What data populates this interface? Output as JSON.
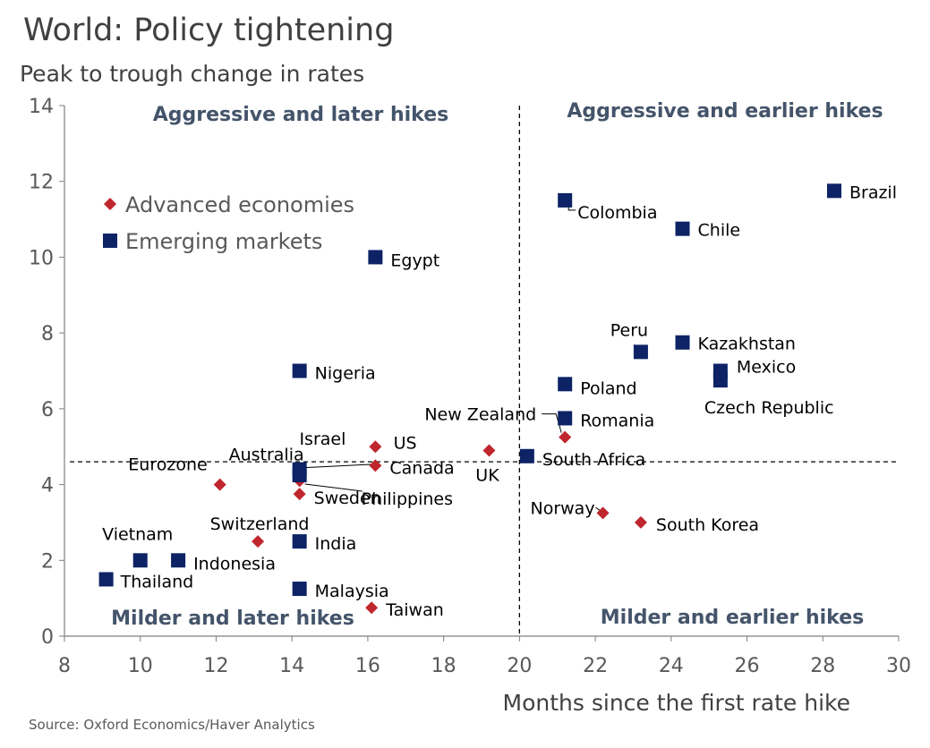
{
  "title": "World: Policy tightening",
  "subtitle": "Peak to trough change in rates",
  "source": "Source: Oxford Economics/Haver Analytics",
  "chart_data": {
    "type": "scatter",
    "xlabel": "Months since the first rate hike",
    "ylabel": "Peak to trough change in rates",
    "xlim": [
      8,
      30
    ],
    "ylim": [
      0,
      14
    ],
    "xticks": [
      "8",
      "10",
      "12",
      "14",
      "16",
      "18",
      "20",
      "22",
      "24",
      "26",
      "28",
      "30"
    ],
    "yticks": [
      "0",
      "2",
      "4",
      "6",
      "8",
      "10",
      "12",
      "14"
    ],
    "reference_lines": {
      "x": 20,
      "y": 4.6
    },
    "grid": false,
    "legend_placement": "top-left",
    "quadrant_labels": {
      "top_left": "Aggressive and later hikes",
      "top_right": "Aggressive and earlier hikes",
      "bottom_left": "Milder and later hikes",
      "bottom_right": "Milder and earlier hikes"
    },
    "series": [
      {
        "name": "Advanced economies",
        "marker": "diamond",
        "color": "#c0262d",
        "points": [
          {
            "label": "Israel",
            "x": 16.2,
            "y": 5.0
          },
          {
            "label": "Canada",
            "x": 16.2,
            "y": 4.5
          },
          {
            "label": "Australia",
            "x": 14.2,
            "y": 4.1
          },
          {
            "label": "Sweden",
            "x": 14.2,
            "y": 3.75
          },
          {
            "label": "Eurozone",
            "x": 12.1,
            "y": 4.0
          },
          {
            "label": "UK",
            "x": 19.2,
            "y": 4.9
          },
          {
            "label": "New Zealand",
            "x": 21.2,
            "y": 5.25
          },
          {
            "label": "Switzerland",
            "x": 13.1,
            "y": 2.5
          },
          {
            "label": "Norway",
            "x": 22.2,
            "y": 3.25
          },
          {
            "label": "South Korea",
            "x": 23.2,
            "y": 3.0
          },
          {
            "label": "Taiwan",
            "x": 16.1,
            "y": 0.75
          }
        ]
      },
      {
        "name": "Emerging markets",
        "marker": "square",
        "color": "#0d2366",
        "points": [
          {
            "label": "Colombia",
            "x": 21.2,
            "y": 11.5
          },
          {
            "label": "Brazil",
            "x": 28.3,
            "y": 11.75
          },
          {
            "label": "Chile",
            "x": 24.3,
            "y": 10.75
          },
          {
            "label": "Egypt",
            "x": 16.2,
            "y": 10.0
          },
          {
            "label": "Peru",
            "x": 23.2,
            "y": 7.5
          },
          {
            "label": "Kazakhstan",
            "x": 24.3,
            "y": 7.75
          },
          {
            "label": "Mexico",
            "x": 25.3,
            "y": 7.0
          },
          {
            "label": "Czech Republic",
            "x": 25.3,
            "y": 6.75
          },
          {
            "label": "Nigeria",
            "x": 14.2,
            "y": 7.0
          },
          {
            "label": "Poland",
            "x": 21.2,
            "y": 6.65
          },
          {
            "label": "Romania",
            "x": 21.2,
            "y": 5.75
          },
          {
            "label": "South Africa",
            "x": 20.2,
            "y": 4.75
          },
          {
            "label": "US",
            "x": 14.2,
            "y": 4.4
          },
          {
            "label": "Philippines",
            "x": 14.2,
            "y": 4.25
          },
          {
            "label": "India",
            "x": 14.2,
            "y": 2.5
          },
          {
            "label": "Vietnam",
            "x": 10.0,
            "y": 2.0
          },
          {
            "label": "Indonesia",
            "x": 11.0,
            "y": 2.0
          },
          {
            "label": "Thailand",
            "x": 9.1,
            "y": 1.5
          },
          {
            "label": "Malaysia",
            "x": 14.2,
            "y": 1.25
          }
        ]
      }
    ]
  }
}
